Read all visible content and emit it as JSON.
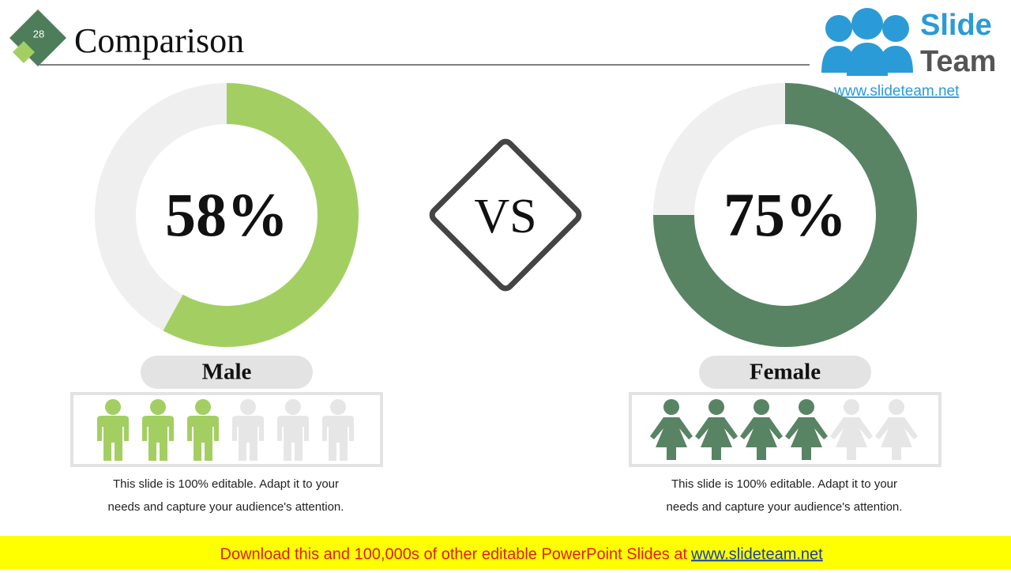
{
  "slide_number": "28",
  "title": "Comparison",
  "logo": {
    "line1": "Slide",
    "line2": "Team",
    "url": "www.slideteam.net"
  },
  "vs": "VS",
  "panels": [
    {
      "label": "Male",
      "percent": 58,
      "percent_label": "58%",
      "color": "#a3cf62",
      "icons_filled": 3,
      "icons_total": 6,
      "description": [
        "This slide is 100% editable. Adapt it to your",
        "needs and capture your audience's attention."
      ]
    },
    {
      "label": "Female",
      "percent": 75,
      "percent_label": "75%",
      "color": "#588464",
      "icons_filled": 4,
      "icons_total": 6,
      "description": [
        "This slide is 100% editable. Adapt it to your",
        "needs and capture your audience's attention."
      ]
    }
  ],
  "banner": {
    "text": "Download this and 100,000s of other editable PowerPoint Slides at",
    "link": "www.slideteam.net"
  }
}
